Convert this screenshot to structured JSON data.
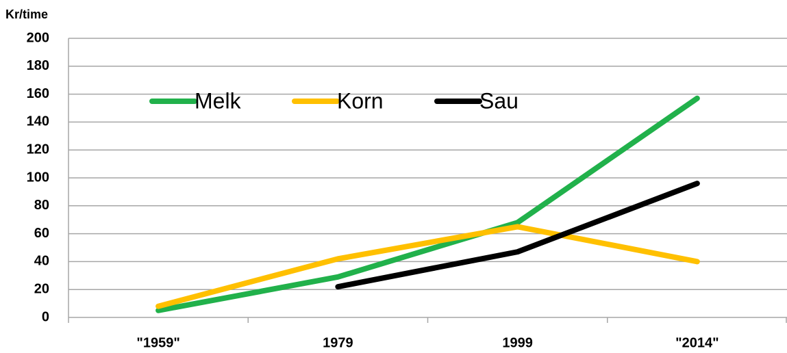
{
  "chart_data": {
    "type": "line",
    "y_label": "Kr/time",
    "categories": [
      "\"1959\"",
      "1979",
      "1999",
      "\"2014\""
    ],
    "series": [
      {
        "name": "Melk",
        "color": "#21b14b",
        "values": [
          5,
          29,
          68,
          157
        ]
      },
      {
        "name": "Korn",
        "color": "#ffc000",
        "values": [
          8,
          42,
          65,
          40
        ]
      },
      {
        "name": "Sau",
        "color": "#000000",
        "values": [
          null,
          22,
          47,
          96
        ]
      }
    ],
    "ylim": [
      0,
      200
    ],
    "yticks": [
      0,
      20,
      40,
      60,
      80,
      100,
      120,
      140,
      160,
      180,
      200
    ],
    "grid": true,
    "legend": "top"
  }
}
